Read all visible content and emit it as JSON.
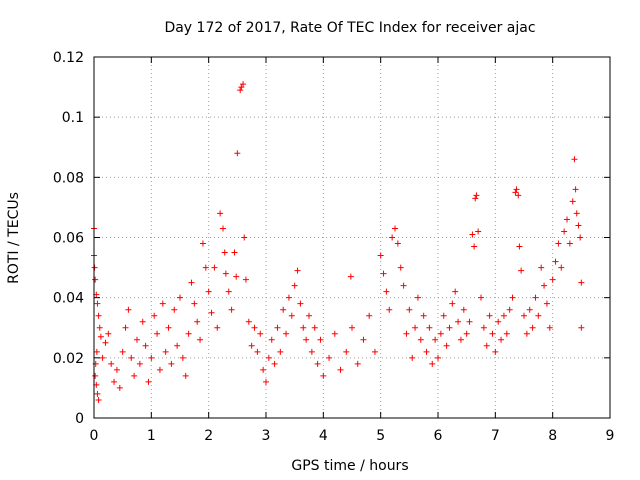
{
  "chart_data": {
    "type": "scatter",
    "title": "Day 172 of 2017, Rate Of TEC Index for receiver ajac",
    "xlabel": "GPS time / hours",
    "ylabel": "ROTI / TECUs",
    "xlim": [
      0,
      9
    ],
    "ylim": [
      0,
      0.12
    ],
    "xticks": [
      0,
      1,
      2,
      3,
      4,
      5,
      6,
      7,
      8,
      9
    ],
    "yticks": [
      0,
      0.02,
      0.04,
      0.06,
      0.08,
      0.1,
      0.12
    ],
    "xtick_labels": [
      "0",
      "1",
      "2",
      "3",
      "4",
      "5",
      "6",
      "7",
      "8",
      "9"
    ],
    "ytick_labels": [
      "0",
      "0.02",
      "0.04",
      "0.06",
      "0.08",
      "0.1",
      "0.12"
    ],
    "grid": true,
    "marker": "+",
    "color": "#ff0000",
    "series": [
      {
        "name": "ROTI",
        "points": [
          [
            0.0,
            0.063
          ],
          [
            0.0,
            0.054
          ],
          [
            0.01,
            0.05
          ],
          [
            0.02,
            0.046
          ],
          [
            0.04,
            0.041
          ],
          [
            0.06,
            0.038
          ],
          [
            0.08,
            0.034
          ],
          [
            0.1,
            0.03
          ],
          [
            0.12,
            0.027
          ],
          [
            0.05,
            0.022
          ],
          [
            0.03,
            0.018
          ],
          [
            0.02,
            0.014
          ],
          [
            0.04,
            0.011
          ],
          [
            0.06,
            0.008
          ],
          [
            0.08,
            0.006
          ],
          [
            0.15,
            0.02
          ],
          [
            0.2,
            0.025
          ],
          [
            0.25,
            0.028
          ],
          [
            0.3,
            0.018
          ],
          [
            0.35,
            0.012
          ],
          [
            0.4,
            0.016
          ],
          [
            0.45,
            0.01
          ],
          [
            0.5,
            0.022
          ],
          [
            0.55,
            0.03
          ],
          [
            0.6,
            0.036
          ],
          [
            0.65,
            0.02
          ],
          [
            0.7,
            0.014
          ],
          [
            0.75,
            0.026
          ],
          [
            0.8,
            0.018
          ],
          [
            0.85,
            0.032
          ],
          [
            0.9,
            0.024
          ],
          [
            0.95,
            0.012
          ],
          [
            1.0,
            0.02
          ],
          [
            1.05,
            0.034
          ],
          [
            1.1,
            0.028
          ],
          [
            1.15,
            0.016
          ],
          [
            1.2,
            0.038
          ],
          [
            1.25,
            0.022
          ],
          [
            1.3,
            0.03
          ],
          [
            1.35,
            0.018
          ],
          [
            1.4,
            0.036
          ],
          [
            1.45,
            0.024
          ],
          [
            1.5,
            0.04
          ],
          [
            1.55,
            0.02
          ],
          [
            1.6,
            0.014
          ],
          [
            1.65,
            0.028
          ],
          [
            1.7,
            0.045
          ],
          [
            1.75,
            0.038
          ],
          [
            1.8,
            0.032
          ],
          [
            1.85,
            0.026
          ],
          [
            1.9,
            0.058
          ],
          [
            1.95,
            0.05
          ],
          [
            2.0,
            0.042
          ],
          [
            2.05,
            0.035
          ],
          [
            2.1,
            0.05
          ],
          [
            2.15,
            0.03
          ],
          [
            2.2,
            0.068
          ],
          [
            2.25,
            0.063
          ],
          [
            2.28,
            0.055
          ],
          [
            2.3,
            0.048
          ],
          [
            2.35,
            0.042
          ],
          [
            2.4,
            0.036
          ],
          [
            2.45,
            0.055
          ],
          [
            2.48,
            0.047
          ],
          [
            2.5,
            0.088
          ],
          [
            2.55,
            0.109
          ],
          [
            2.57,
            0.11
          ],
          [
            2.6,
            0.111
          ],
          [
            2.62,
            0.06
          ],
          [
            2.65,
            0.046
          ],
          [
            2.7,
            0.032
          ],
          [
            2.75,
            0.024
          ],
          [
            2.8,
            0.03
          ],
          [
            2.85,
            0.022
          ],
          [
            2.9,
            0.028
          ],
          [
            2.95,
            0.016
          ],
          [
            3.0,
            0.012
          ],
          [
            3.05,
            0.02
          ],
          [
            3.1,
            0.026
          ],
          [
            3.15,
            0.018
          ],
          [
            3.2,
            0.03
          ],
          [
            3.25,
            0.022
          ],
          [
            3.3,
            0.036
          ],
          [
            3.35,
            0.028
          ],
          [
            3.4,
            0.04
          ],
          [
            3.45,
            0.034
          ],
          [
            3.5,
            0.044
          ],
          [
            3.55,
            0.049
          ],
          [
            3.6,
            0.038
          ],
          [
            3.65,
            0.03
          ],
          [
            3.7,
            0.026
          ],
          [
            3.75,
            0.034
          ],
          [
            3.8,
            0.022
          ],
          [
            3.85,
            0.03
          ],
          [
            3.9,
            0.018
          ],
          [
            3.95,
            0.026
          ],
          [
            4.0,
            0.014
          ],
          [
            4.1,
            0.02
          ],
          [
            4.2,
            0.028
          ],
          [
            4.3,
            0.016
          ],
          [
            4.4,
            0.022
          ],
          [
            4.48,
            0.047
          ],
          [
            4.5,
            0.03
          ],
          [
            4.6,
            0.018
          ],
          [
            4.7,
            0.026
          ],
          [
            4.8,
            0.034
          ],
          [
            4.9,
            0.022
          ],
          [
            5.0,
            0.054
          ],
          [
            5.05,
            0.048
          ],
          [
            5.1,
            0.042
          ],
          [
            5.15,
            0.036
          ],
          [
            5.2,
            0.06
          ],
          [
            5.25,
            0.063
          ],
          [
            5.3,
            0.058
          ],
          [
            5.35,
            0.05
          ],
          [
            5.4,
            0.044
          ],
          [
            5.45,
            0.028
          ],
          [
            5.5,
            0.036
          ],
          [
            5.55,
            0.02
          ],
          [
            5.6,
            0.03
          ],
          [
            5.65,
            0.04
          ],
          [
            5.7,
            0.026
          ],
          [
            5.75,
            0.034
          ],
          [
            5.8,
            0.022
          ],
          [
            5.85,
            0.03
          ],
          [
            5.9,
            0.018
          ],
          [
            5.95,
            0.026
          ],
          [
            6.0,
            0.02
          ],
          [
            6.05,
            0.028
          ],
          [
            6.1,
            0.034
          ],
          [
            6.15,
            0.024
          ],
          [
            6.2,
            0.03
          ],
          [
            6.25,
            0.038
          ],
          [
            6.3,
            0.042
          ],
          [
            6.35,
            0.032
          ],
          [
            6.4,
            0.026
          ],
          [
            6.45,
            0.036
          ],
          [
            6.5,
            0.028
          ],
          [
            6.55,
            0.032
          ],
          [
            6.6,
            0.061
          ],
          [
            6.63,
            0.057
          ],
          [
            6.65,
            0.073
          ],
          [
            6.67,
            0.074
          ],
          [
            6.7,
            0.062
          ],
          [
            6.75,
            0.04
          ],
          [
            6.8,
            0.03
          ],
          [
            6.85,
            0.024
          ],
          [
            6.9,
            0.034
          ],
          [
            6.95,
            0.028
          ],
          [
            7.0,
            0.022
          ],
          [
            7.05,
            0.032
          ],
          [
            7.1,
            0.026
          ],
          [
            7.15,
            0.034
          ],
          [
            7.2,
            0.028
          ],
          [
            7.25,
            0.036
          ],
          [
            7.3,
            0.04
          ],
          [
            7.35,
            0.075
          ],
          [
            7.37,
            0.076
          ],
          [
            7.4,
            0.074
          ],
          [
            7.42,
            0.057
          ],
          [
            7.45,
            0.049
          ],
          [
            7.5,
            0.034
          ],
          [
            7.55,
            0.028
          ],
          [
            7.6,
            0.036
          ],
          [
            7.65,
            0.03
          ],
          [
            7.7,
            0.04
          ],
          [
            7.75,
            0.034
          ],
          [
            7.8,
            0.05
          ],
          [
            7.85,
            0.044
          ],
          [
            7.9,
            0.038
          ],
          [
            7.95,
            0.03
          ],
          [
            8.0,
            0.046
          ],
          [
            8.05,
            0.052
          ],
          [
            8.1,
            0.058
          ],
          [
            8.15,
            0.05
          ],
          [
            8.2,
            0.062
          ],
          [
            8.25,
            0.066
          ],
          [
            8.3,
            0.058
          ],
          [
            8.35,
            0.072
          ],
          [
            8.38,
            0.086
          ],
          [
            8.4,
            0.076
          ],
          [
            8.42,
            0.068
          ],
          [
            8.45,
            0.064
          ],
          [
            8.48,
            0.06
          ],
          [
            8.5,
            0.045
          ],
          [
            8.5,
            0.03
          ]
        ]
      }
    ]
  }
}
